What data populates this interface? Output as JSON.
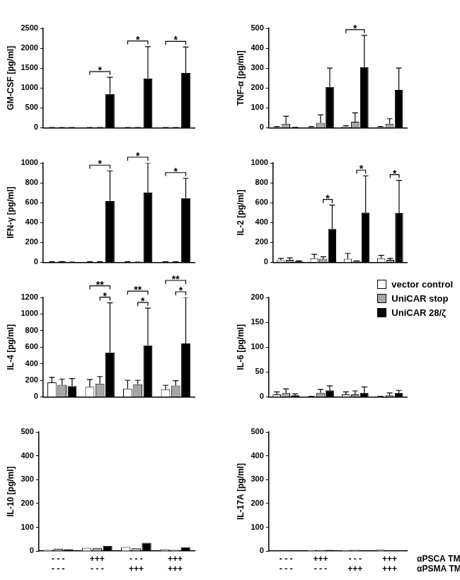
{
  "chart_data": [
    {
      "type": "bar",
      "y_label": "GM-CSF [pg/ml]",
      "categories": [
        null,
        null,
        null,
        null
      ],
      "tick_labels": "y",
      "grid": false,
      "ylim": [
        0,
        2500
      ],
      "yticks": [
        0,
        500,
        1000,
        1500,
        2000,
        2500
      ],
      "series": [
        {
          "name": "vector control",
          "color": "#ffffff",
          "values": [
            5,
            5,
            5,
            5
          ],
          "errors": [
            0,
            0,
            0,
            0
          ]
        },
        {
          "name": "UniCAR stop",
          "color": "#a6a6a6",
          "values": [
            5,
            5,
            5,
            5
          ],
          "errors": [
            0,
            0,
            0,
            0
          ]
        },
        {
          "name": "UniCAR 28/ζ",
          "color": "#000000",
          "values": [
            5,
            850,
            1240,
            1380
          ],
          "errors": [
            0,
            420,
            800,
            650
          ]
        }
      ],
      "significance": [
        {
          "category": 1,
          "from": "vector control",
          "to": "UniCAR 28/ζ",
          "label": "*"
        },
        {
          "category": 2,
          "from": "vector control",
          "to": "UniCAR 28/ζ",
          "label": "*"
        },
        {
          "category": 3,
          "from": "vector control",
          "to": "UniCAR 28/ζ",
          "label": "*"
        }
      ]
    },
    {
      "type": "bar",
      "y_label": "TNF-α [pg/ml]",
      "categories": [
        null,
        null,
        null,
        null
      ],
      "tick_labels": "y",
      "grid": false,
      "ylim": [
        0,
        500
      ],
      "yticks": [
        0,
        100,
        200,
        300,
        400,
        500
      ],
      "series": [
        {
          "name": "vector control",
          "color": "#ffffff",
          "values": [
            3,
            3,
            5,
            3
          ],
          "errors": [
            3,
            3,
            5,
            3
          ]
        },
        {
          "name": "UniCAR stop",
          "color": "#a6a6a6",
          "values": [
            20,
            25,
            30,
            20
          ],
          "errors": [
            38,
            40,
            45,
            25
          ]
        },
        {
          "name": "UniCAR 28/ζ",
          "color": "#000000",
          "values": [
            2,
            205,
            305,
            190
          ],
          "errors": [
            0,
            95,
            160,
            110
          ]
        }
      ],
      "significance": [
        {
          "category": 2,
          "from": "vector control",
          "to": "UniCAR 28/ζ",
          "label": "*"
        }
      ]
    },
    {
      "type": "bar",
      "y_label": "IFN-γ [pg/ml]",
      "categories": [
        null,
        null,
        null,
        null
      ],
      "tick_labels": "y",
      "grid": false,
      "ylim": [
        0,
        1000
      ],
      "yticks": [
        0,
        200,
        400,
        600,
        800,
        1000
      ],
      "series": [
        {
          "name": "vector control",
          "color": "#ffffff",
          "values": [
            5,
            5,
            5,
            5
          ],
          "errors": [
            0,
            0,
            0,
            0
          ]
        },
        {
          "name": "UniCAR stop",
          "color": "#a6a6a6",
          "values": [
            8,
            5,
            3,
            5
          ],
          "errors": [
            0,
            0,
            0,
            0
          ]
        },
        {
          "name": "UniCAR 28/ζ",
          "color": "#000000",
          "values": [
            3,
            615,
            700,
            645
          ],
          "errors": [
            0,
            305,
            300,
            200
          ]
        }
      ],
      "significance": [
        {
          "category": 1,
          "from": "vector control",
          "to": "UniCAR 28/ζ",
          "label": "*"
        },
        {
          "category": 2,
          "from": "vector control",
          "to": "UniCAR 28/ζ",
          "label": "*"
        },
        {
          "category": 3,
          "from": "vector control",
          "to": "UniCAR 28/ζ",
          "label": "*"
        }
      ]
    },
    {
      "type": "bar",
      "y_label": "IL-2 [pg/ml]",
      "categories": [
        null,
        null,
        null,
        null
      ],
      "tick_labels": "y",
      "grid": false,
      "ylim": [
        0,
        1000
      ],
      "yticks": [
        0,
        200,
        400,
        600,
        800,
        1000
      ],
      "series": [
        {
          "name": "vector control",
          "color": "#ffffff",
          "values": [
            20,
            40,
            35,
            40
          ],
          "errors": [
            20,
            40,
            55,
            30
          ]
        },
        {
          "name": "UniCAR stop",
          "color": "#a6a6a6",
          "values": [
            25,
            35,
            10,
            25
          ],
          "errors": [
            20,
            20,
            5,
            15
          ]
        },
        {
          "name": "UniCAR 28/ζ",
          "color": "#000000",
          "values": [
            10,
            335,
            500,
            495
          ],
          "errors": [
            5,
            240,
            370,
            330
          ]
        }
      ],
      "significance": [
        {
          "category": 1,
          "from": "UniCAR stop",
          "to": "UniCAR 28/ζ",
          "label": "*"
        },
        {
          "category": 2,
          "from": "UniCAR stop",
          "to": "UniCAR 28/ζ",
          "label": "*"
        },
        {
          "category": 3,
          "from": "UniCAR stop",
          "to": "UniCAR 28/ζ",
          "label": "*"
        }
      ]
    },
    {
      "type": "bar",
      "y_label": "IL-4 [pg/ml]",
      "categories": [
        null,
        null,
        null,
        null
      ],
      "tick_labels": "y",
      "grid": false,
      "ylim": [
        0,
        1200
      ],
      "yticks": [
        0,
        200,
        400,
        600,
        800,
        1000,
        1200
      ],
      "series": [
        {
          "name": "vector control",
          "color": "#ffffff",
          "values": [
            175,
            120,
            100,
            90
          ],
          "errors": [
            60,
            90,
            100,
            50
          ]
        },
        {
          "name": "UniCAR stop",
          "color": "#a6a6a6",
          "values": [
            145,
            160,
            150,
            135
          ],
          "errors": [
            70,
            85,
            50,
            60
          ]
        },
        {
          "name": "UniCAR 28/ζ",
          "color": "#000000",
          "values": [
            130,
            535,
            620,
            645
          ],
          "errors": [
            90,
            600,
            450,
            555
          ]
        }
      ],
      "significance": [
        {
          "category": 1,
          "from": "UniCAR stop",
          "to": "UniCAR 28/ζ",
          "label": "*"
        },
        {
          "category": 1,
          "from": "vector control",
          "to": "UniCAR 28/ζ",
          "label": "**"
        },
        {
          "category": 2,
          "from": "UniCAR stop",
          "to": "UniCAR 28/ζ",
          "label": "*"
        },
        {
          "category": 2,
          "from": "vector control",
          "to": "UniCAR 28/ζ",
          "label": "**"
        },
        {
          "category": 3,
          "from": "UniCAR stop",
          "to": "UniCAR 28/ζ",
          "label": "*"
        },
        {
          "category": 3,
          "from": "vector control",
          "to": "UniCAR 28/ζ",
          "label": "**"
        }
      ]
    },
    {
      "type": "bar",
      "y_label": "IL-6 [pg/ml]",
      "categories": [
        null,
        null,
        null,
        null
      ],
      "tick_labels": "y",
      "grid": false,
      "legend": "upper right",
      "ylim": [
        0,
        200
      ],
      "yticks": [
        0,
        50,
        100,
        150,
        200
      ],
      "series": [
        {
          "name": "vector control",
          "color": "#ffffff",
          "values": [
            5,
            1,
            5,
            1
          ],
          "errors": [
            5,
            0,
            5,
            0
          ]
        },
        {
          "name": "UniCAR stop",
          "color": "#a6a6a6",
          "values": [
            8,
            8,
            5,
            3
          ],
          "errors": [
            8,
            7,
            7,
            5
          ]
        },
        {
          "name": "UniCAR 28/ζ",
          "color": "#000000",
          "values": [
            3,
            13,
            8,
            8
          ],
          "errors": [
            3,
            9,
            12,
            5
          ]
        }
      ]
    },
    {
      "type": "bar",
      "y_label": "IL-10 [pg/ml]",
      "grid": false,
      "categories": [
        [
          "- - -",
          "- - -"
        ],
        [
          "+++",
          "- - -"
        ],
        [
          "- - -",
          "+++"
        ],
        [
          "+++",
          "+++"
        ]
      ],
      "ylim": [
        0,
        500
      ],
      "yticks": [
        0,
        100,
        200,
        300,
        400,
        500
      ],
      "series": [
        {
          "name": "vector control",
          "color": "#ffffff",
          "values": [
            5,
            14,
            17,
            7
          ]
        },
        {
          "name": "UniCAR stop",
          "color": "#a6a6a6",
          "values": [
            10,
            13,
            12,
            5
          ]
        },
        {
          "name": "UniCAR 28/ζ",
          "color": "#000000",
          "values": [
            8,
            22,
            35,
            16
          ]
        }
      ]
    },
    {
      "type": "bar",
      "y_label": "IL-17A [pg/ml]",
      "grid": false,
      "categories": [
        [
          "- - -",
          "- - -"
        ],
        [
          "+++",
          "- - -"
        ],
        [
          "- - -",
          "+++"
        ],
        [
          "+++",
          "+++"
        ]
      ],
      "row_labels": [
        "αPSCA TM",
        "αPSMA TM"
      ],
      "ylim": [
        0,
        500
      ],
      "yticks": [
        0,
        100,
        200,
        300,
        400,
        500
      ],
      "series": [
        {
          "name": "vector control",
          "color": "#ffffff",
          "values": [
            2,
            4,
            4,
            6
          ]
        },
        {
          "name": "UniCAR stop",
          "color": "#a6a6a6",
          "values": [
            2,
            4,
            5,
            2
          ]
        },
        {
          "name": "UniCAR 28/ζ",
          "color": "#000000",
          "values": [
            2,
            5,
            3,
            1
          ]
        }
      ]
    }
  ]
}
